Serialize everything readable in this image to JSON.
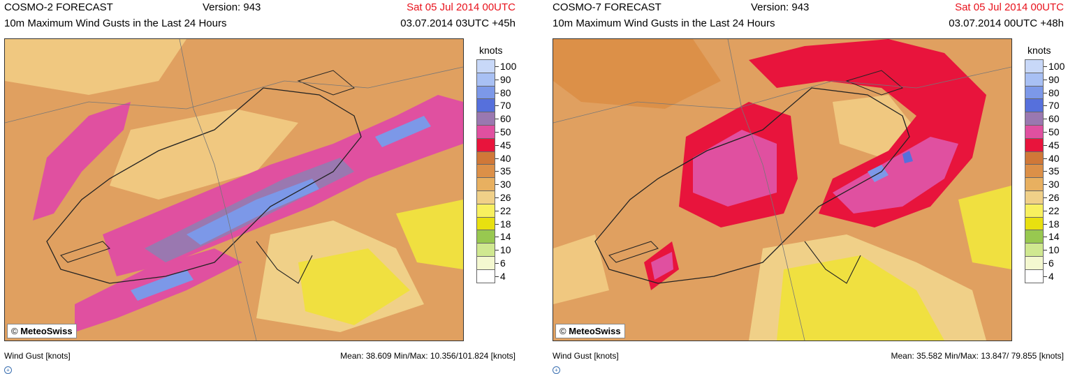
{
  "panels": [
    {
      "model": "COSMO-2 FORECAST",
      "version": "Version: 943",
      "valid_date": "Sat 05 Jul 2014 00UTC",
      "field": "10m Maximum Wind Gusts in the Last 24 Hours",
      "run": "03.07.2014 03UTC +45h",
      "credit": "MeteoSwiss",
      "legend_unit": "knots",
      "footer_left": "Wind Gust [knots]",
      "footer_right": "Mean:  38.609 Min/Max:  10.356/101.824 [knots]"
    },
    {
      "model": "COSMO-7 FORECAST",
      "version": "Version: 943",
      "valid_date": "Sat 05 Jul 2014 00UTC",
      "field": "10m Maximum Wind Gusts in the Last 24 Hours",
      "run": "03.07.2014 00UTC +48h",
      "credit": "MeteoSwiss",
      "legend_unit": "knots",
      "footer_left": "Wind Gust [knots]",
      "footer_right": "Mean:  35.582 Min/Max:  13.847/ 79.855 [knots]"
    }
  ],
  "legend": {
    "labels": [
      "100",
      "90",
      "80",
      "70",
      "60",
      "50",
      "45",
      "40",
      "35",
      "30",
      "26",
      "22",
      "18",
      "14",
      "10",
      "6",
      "4"
    ],
    "colors": [
      "#c8d8f8",
      "#a8c0f4",
      "#7c98e8",
      "#5670dc",
      "#9a78b0",
      "#e050a0",
      "#e8143c",
      "#d07838",
      "#dc9048",
      "#e8b060",
      "#f0d088",
      "#f8f060",
      "#e8e010",
      "#98c850",
      "#d0e890",
      "#f4f8d0",
      "#ffffff"
    ]
  },
  "map_colors": {
    "base": "#e0a060",
    "light": "#f0c880",
    "yellow": "#f0e040",
    "red": "#e8143c",
    "pink": "#e050a0",
    "purple": "#9a78b0",
    "blue": "#7c98e8",
    "border": "#222222"
  }
}
